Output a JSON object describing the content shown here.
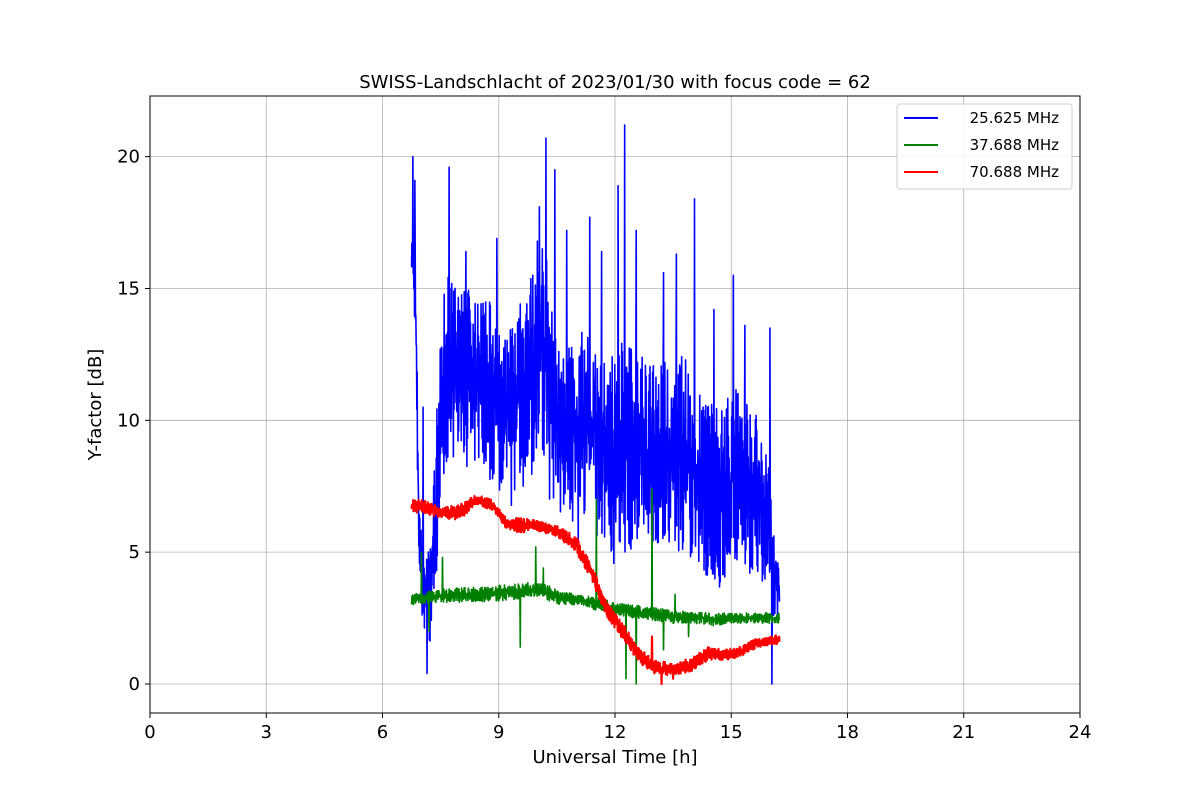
{
  "chart_data": {
    "type": "line",
    "title": "SWISS-Landschlacht of 2023/01/30 with focus code = 62",
    "xlabel": "Universal Time [h]",
    "ylabel": "Y-factor [dB]",
    "xlim": [
      0,
      24
    ],
    "ylim": [
      -1.1,
      22.3
    ],
    "xticks": [
      0,
      3,
      6,
      9,
      12,
      15,
      18,
      21,
      24
    ],
    "yticks": [
      0,
      5,
      10,
      15,
      20
    ],
    "grid": true,
    "legend_position": "top-right",
    "series": [
      {
        "name": "25.625 MHz",
        "color": "#0000ff",
        "profile": [
          [
            6.75,
            15.0,
            17.5
          ],
          [
            6.85,
            13.5,
            17.0
          ],
          [
            6.95,
            3.0,
            6.5
          ],
          [
            7.1,
            2.0,
            5.0
          ],
          [
            7.25,
            1.5,
            5.5
          ],
          [
            7.45,
            5.0,
            12.0
          ],
          [
            7.65,
            8.0,
            16.0
          ],
          [
            7.9,
            8.5,
            15.0
          ],
          [
            8.2,
            8.0,
            15.0
          ],
          [
            8.5,
            8.5,
            14.5
          ],
          [
            8.8,
            7.5,
            14.5
          ],
          [
            9.1,
            7.0,
            13.0
          ],
          [
            9.4,
            6.5,
            14.0
          ],
          [
            9.7,
            7.5,
            15.0
          ],
          [
            9.9,
            8.0,
            16.5
          ],
          [
            10.1,
            9.0,
            17.5
          ],
          [
            10.3,
            7.0,
            15.5
          ],
          [
            10.5,
            6.5,
            13.0
          ],
          [
            10.8,
            6.0,
            13.0
          ],
          [
            11.1,
            6.5,
            13.5
          ],
          [
            11.4,
            6.0,
            13.0
          ],
          [
            11.7,
            5.0,
            12.5
          ],
          [
            12.0,
            4.5,
            13.5
          ],
          [
            12.3,
            5.0,
            13.0
          ],
          [
            12.6,
            5.0,
            12.5
          ],
          [
            12.9,
            5.0,
            12.5
          ],
          [
            13.2,
            5.5,
            12.5
          ],
          [
            13.5,
            5.0,
            12.5
          ],
          [
            13.8,
            5.0,
            12.5
          ],
          [
            14.1,
            4.5,
            11.5
          ],
          [
            14.4,
            4.0,
            11.0
          ],
          [
            14.7,
            3.5,
            10.5
          ],
          [
            15.0,
            4.5,
            11.5
          ],
          [
            15.3,
            4.5,
            11.0
          ],
          [
            15.6,
            4.0,
            10.5
          ],
          [
            15.9,
            3.5,
            9.5
          ],
          [
            16.1,
            2.5,
            6.0
          ],
          [
            16.25,
            2.5,
            4.5
          ]
        ],
        "spikes": [
          [
            6.78,
            20.0
          ],
          [
            6.83,
            19.1
          ],
          [
            7.05,
            10.5
          ],
          [
            7.15,
            0.4
          ],
          [
            7.72,
            19.6
          ],
          [
            8.15,
            16.4
          ],
          [
            8.95,
            16.9
          ],
          [
            10.05,
            18.1
          ],
          [
            10.22,
            20.7
          ],
          [
            10.45,
            19.5
          ],
          [
            10.75,
            17.2
          ],
          [
            11.35,
            17.7
          ],
          [
            11.65,
            16.4
          ],
          [
            12.08,
            18.9
          ],
          [
            12.25,
            21.2
          ],
          [
            12.55,
            17.2
          ],
          [
            13.25,
            15.6
          ],
          [
            13.58,
            16.3
          ],
          [
            14.05,
            18.4
          ],
          [
            14.55,
            14.2
          ],
          [
            15.05,
            15.5
          ],
          [
            15.35,
            13.6
          ],
          [
            16.0,
            13.5
          ],
          [
            16.05,
            0.0
          ],
          [
            11.05,
            5.0
          ]
        ]
      },
      {
        "name": "37.688 MHz",
        "color": "#008000",
        "profile": [
          [
            6.75,
            3.0,
            3.4
          ],
          [
            7.5,
            3.1,
            3.6
          ],
          [
            8.5,
            3.1,
            3.7
          ],
          [
            9.5,
            3.2,
            3.8
          ],
          [
            10.0,
            3.3,
            3.9
          ],
          [
            10.5,
            3.0,
            3.6
          ],
          [
            11.0,
            3.0,
            3.4
          ],
          [
            11.5,
            2.8,
            3.3
          ],
          [
            12.0,
            2.6,
            3.1
          ],
          [
            12.5,
            2.5,
            3.0
          ],
          [
            13.0,
            2.4,
            2.9
          ],
          [
            13.5,
            2.3,
            2.8
          ],
          [
            14.0,
            2.3,
            2.8
          ],
          [
            14.5,
            2.2,
            2.7
          ],
          [
            15.0,
            2.3,
            2.7
          ],
          [
            15.5,
            2.3,
            2.7
          ],
          [
            16.0,
            2.3,
            2.7
          ],
          [
            16.25,
            2.3,
            2.7
          ]
        ],
        "spikes": [
          [
            7.0,
            5.0
          ],
          [
            7.2,
            2.0
          ],
          [
            7.55,
            4.8
          ],
          [
            9.55,
            1.4
          ],
          [
            9.95,
            5.2
          ],
          [
            10.15,
            4.4
          ],
          [
            11.52,
            7.0
          ],
          [
            12.05,
            2.9
          ],
          [
            12.28,
            0.2
          ],
          [
            12.55,
            0.0
          ],
          [
            12.95,
            7.4
          ],
          [
            13.25,
            1.3
          ],
          [
            13.55,
            3.4
          ],
          [
            13.9,
            1.8
          ]
        ]
      },
      {
        "name": "70.688 MHz",
        "color": "#ff0000",
        "profile": [
          [
            6.75,
            6.5,
            7.0
          ],
          [
            7.0,
            6.5,
            7.0
          ],
          [
            7.5,
            6.3,
            6.7
          ],
          [
            8.0,
            6.2,
            6.8
          ],
          [
            8.4,
            6.8,
            7.2
          ],
          [
            8.8,
            6.6,
            7.0
          ],
          [
            9.2,
            5.9,
            6.3
          ],
          [
            9.6,
            5.7,
            6.3
          ],
          [
            10.0,
            5.8,
            6.2
          ],
          [
            10.5,
            5.6,
            6.0
          ],
          [
            11.0,
            5.0,
            5.6
          ],
          [
            11.4,
            3.9,
            4.5
          ],
          [
            11.8,
            2.5,
            3.1
          ],
          [
            12.2,
            1.7,
            2.3
          ],
          [
            12.6,
            0.8,
            1.4
          ],
          [
            13.0,
            0.4,
            0.9
          ],
          [
            13.5,
            0.3,
            0.8
          ],
          [
            14.0,
            0.5,
            1.0
          ],
          [
            14.4,
            0.9,
            1.4
          ],
          [
            14.8,
            0.9,
            1.3
          ],
          [
            15.2,
            1.0,
            1.4
          ],
          [
            15.6,
            1.3,
            1.7
          ],
          [
            16.0,
            1.5,
            1.8
          ],
          [
            16.25,
            1.5,
            1.9
          ]
        ],
        "spikes": [
          [
            12.95,
            1.8
          ],
          [
            13.2,
            0.0
          ],
          [
            13.5,
            0.2
          ]
        ]
      }
    ]
  }
}
